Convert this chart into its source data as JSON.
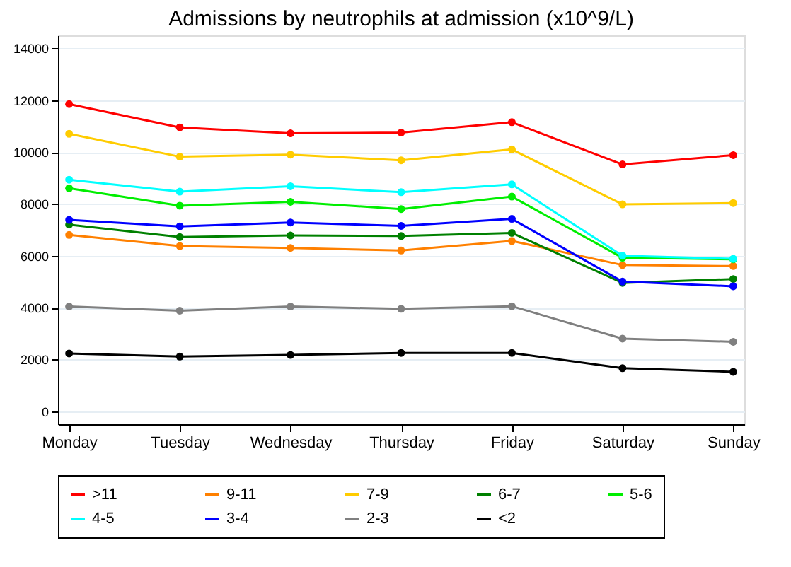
{
  "chart_data": {
    "type": "line",
    "title": "Admissions by neutrophils at admission (x10^9/L)",
    "categories": [
      "Monday",
      "Tuesday",
      "Wednesday",
      "Thursday",
      "Friday",
      "Saturday",
      "Sunday"
    ],
    "series": [
      {
        "name": ">11",
        "color": "#ff0000",
        "values": [
          11850,
          10950,
          10720,
          10750,
          11150,
          9520,
          9880
        ]
      },
      {
        "name": "9-11",
        "color": "#ff8000",
        "values": [
          6800,
          6370,
          6300,
          6200,
          6570,
          5640,
          5600
        ]
      },
      {
        "name": "7-9",
        "color": "#ffcc00",
        "values": [
          10700,
          9820,
          9900,
          9680,
          10100,
          7980,
          8030
        ]
      },
      {
        "name": "6-7",
        "color": "#008000",
        "values": [
          7200,
          6720,
          6780,
          6760,
          6880,
          4950,
          5100
        ]
      },
      {
        "name": "5-6",
        "color": "#00ee00",
        "values": [
          8600,
          7930,
          8080,
          7800,
          8280,
          5920,
          5860
        ]
      },
      {
        "name": "4-5",
        "color": "#00ffff",
        "values": [
          8930,
          8470,
          8680,
          8450,
          8750,
          6000,
          5880
        ]
      },
      {
        "name": "3-4",
        "color": "#0000ff",
        "values": [
          7380,
          7130,
          7280,
          7150,
          7420,
          5000,
          4820
        ]
      },
      {
        "name": "2-3",
        "color": "#808080",
        "values": [
          4040,
          3880,
          4040,
          3950,
          4050,
          2800,
          2680
        ]
      },
      {
        "name": "<2",
        "color": "#000000",
        "values": [
          2230,
          2110,
          2170,
          2250,
          2250,
          1660,
          1520
        ]
      }
    ],
    "ylim": [
      -500,
      14500
    ],
    "yticks": [
      0,
      2000,
      4000,
      6000,
      8000,
      10000,
      12000,
      14000
    ],
    "grid": "y",
    "legend": "bottom",
    "marker": "circle",
    "line_style": "solid"
  }
}
